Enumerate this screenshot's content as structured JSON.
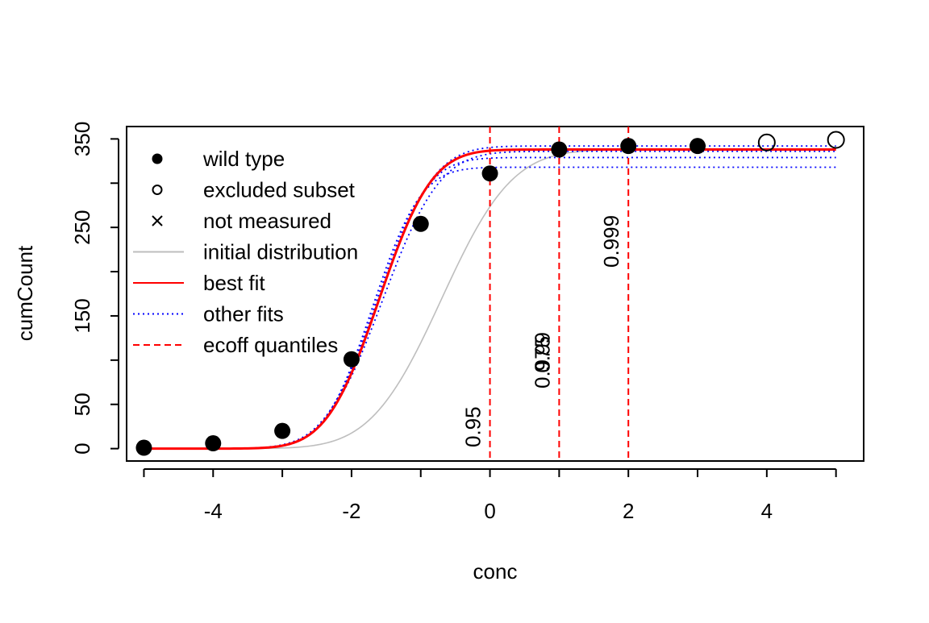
{
  "chart_data": {
    "type": "scatter",
    "xlabel": "conc",
    "ylabel": "cumCount",
    "xlim": [
      -5.25,
      5.4
    ],
    "ylim": [
      -14,
      364
    ],
    "x_ticks": [
      -4,
      -2,
      0,
      2,
      4
    ],
    "x_minor_ticks": [
      -5,
      -4,
      -3,
      -2,
      -1,
      0,
      1,
      2,
      3,
      4,
      5
    ],
    "y_ticks": [
      0,
      50,
      150,
      250,
      350
    ],
    "y_minor_ticks": [
      0,
      50,
      100,
      150,
      200,
      250,
      300,
      350
    ],
    "grid": false,
    "legend_position": "top-left",
    "legend": [
      {
        "label": "wild type",
        "symbol": "dot"
      },
      {
        "label": "excluded subset",
        "symbol": "circle"
      },
      {
        "label": "not measured",
        "symbol": "cross"
      },
      {
        "label": "initial distribution",
        "symbol": "line",
        "color": "#bebebe",
        "dash": "solid"
      },
      {
        "label": "best fit",
        "symbol": "line",
        "color": "#ff0000",
        "dash": "solid"
      },
      {
        "label": "other fits",
        "symbol": "line",
        "color": "#0000ff",
        "dash": "dotted"
      },
      {
        "label": "ecoff quantiles",
        "symbol": "line",
        "color": "#ff0000",
        "dash": "dashed"
      }
    ],
    "wild_type_points": {
      "x": [
        -5,
        -4,
        -3,
        -2,
        -1,
        0,
        1,
        2,
        3
      ],
      "y": [
        1,
        6,
        20,
        101,
        254,
        311,
        338,
        342,
        342
      ]
    },
    "excluded_points": {
      "x": [
        4,
        5
      ],
      "y": [
        346,
        349
      ]
    },
    "curves": {
      "initial_distribution": {
        "color": "#bebebe",
        "asymptote": 338,
        "mu": -0.7,
        "sigma": 0.8
      },
      "best_fit": {
        "color": "#ff0000",
        "asymptote": 338,
        "mu": -1.6,
        "sigma": 0.6
      },
      "other_fits": {
        "color": "#0000ff",
        "fits": [
          {
            "asymptote": 342,
            "mu": -1.6,
            "sigma": 0.62
          },
          {
            "asymptote": 329,
            "mu": -1.65,
            "sigma": 0.58
          },
          {
            "asymptote": 318,
            "mu": -1.7,
            "sigma": 0.55
          },
          {
            "asymptote": 336,
            "mu": -1.55,
            "sigma": 0.65
          }
        ]
      }
    },
    "ecoff_quantiles": [
      {
        "label": "0.95",
        "x": 0,
        "color": "#ff0000"
      },
      {
        "label": "0.975",
        "x": 1,
        "color": "#ff0000"
      },
      {
        "label": "0.99",
        "x": 1,
        "color": "#ff0000"
      },
      {
        "label": "0.999",
        "x": 2,
        "color": "#ff0000"
      }
    ]
  }
}
